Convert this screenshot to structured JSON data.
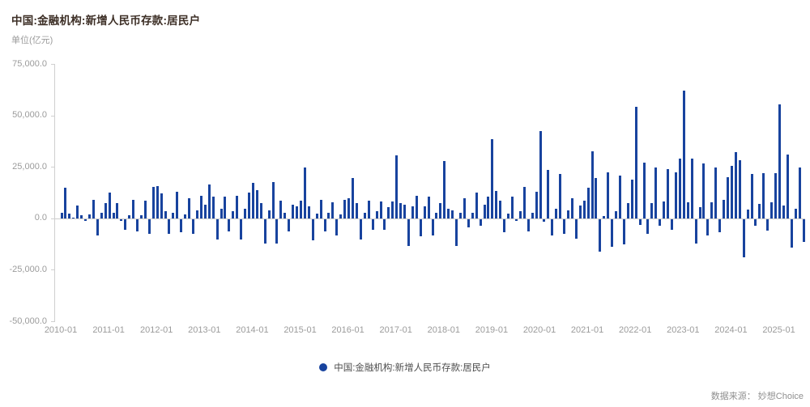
{
  "header": {
    "title": "中国:金融机构:新增人民币存款:居民户",
    "unit_label": "单位(亿元)"
  },
  "legend": {
    "label": "中国:金融机构:新增人民币存款:居民户",
    "dot_color": "#18439E"
  },
  "footer": {
    "source_note": "数据来源： 妙想Choice"
  },
  "colors": {
    "bar": "#18439E",
    "axis": "#cfcfcf",
    "tick_text": "#9b9b9b"
  },
  "chart_data": {
    "type": "bar",
    "title": "中国:金融机构:新增人民币存款:居民户",
    "ylabel": "单位(亿元)",
    "ylim": [
      -50000,
      75000
    ],
    "grid": false,
    "legend_position": "bottom-center",
    "start_month": "2010-01",
    "frequency": "monthly",
    "y_tick_labels": [
      "75,000.0",
      "50,000.0",
      "25,000.0",
      "0.0",
      "-25,000.0",
      "-50,000.0"
    ],
    "y_tick_values": [
      75000,
      50000,
      25000,
      0,
      -25000,
      -50000
    ],
    "x_tick_labels": [
      "2010-01",
      "2011-01",
      "2012-01",
      "2013-01",
      "2014-01",
      "2015-01",
      "2016-01",
      "2017-01",
      "2018-01",
      "2019-01",
      "2020-01",
      "2021-01",
      "2022-01",
      "2023-01",
      "2024-01",
      "2025-01"
    ],
    "values": [
      2600,
      15000,
      2300,
      500,
      6200,
      1300,
      -1000,
      2000,
      9100,
      -7800,
      2600,
      7500,
      12400,
      2600,
      7200,
      -700,
      -5200,
      1500,
      9100,
      -5900,
      1500,
      8500,
      -7200,
      15300,
      15600,
      12200,
      3300,
      -7200,
      2600,
      13000,
      -6500,
      2000,
      9800,
      -7200,
      3900,
      11000,
      6500,
      16500,
      10400,
      -9800,
      4500,
      10400,
      -5900,
      3300,
      11000,
      -9800,
      4600,
      12400,
      17200,
      13500,
      7200,
      -11800,
      3900,
      17600,
      -11800,
      8500,
      2600,
      -5900,
      6500,
      5900,
      8500,
      24700,
      5900,
      -10400,
      2300,
      9100,
      -5900,
      2600,
      7800,
      -7800,
      2000,
      9100,
      9800,
      19500,
      7200,
      -9800,
      2600,
      8500,
      -5100,
      3500,
      8000,
      -5000,
      5500,
      8000,
      30600,
      7200,
      6500,
      -13000,
      5900,
      11000,
      -8500,
      5900,
      10400,
      -8000,
      2700,
      7200,
      28000,
      4600,
      4000,
      -13200,
      2500,
      9800,
      -3900,
      2600,
      12400,
      -3300,
      6500,
      10400,
      38400,
      13200,
      8700,
      -6200,
      2400,
      10400,
      -1000,
      3500,
      15400,
      -6000,
      2500,
      13000,
      42300,
      -1200,
      23500,
      -8000,
      4800,
      21700,
      -7200,
      4000,
      9600,
      -9600,
      6300,
      8600,
      14800,
      32600,
      19400,
      -15700,
      1100,
      22300,
      -13600,
      3300,
      20700,
      -12100,
      7300,
      18700,
      54100,
      -2900,
      27000,
      -7000,
      7400,
      24700,
      -3400,
      8300,
      23800,
      -5100,
      22500,
      28900,
      62000,
      7900,
      29100,
      -12000,
      5400,
      26700,
      -8100,
      7900,
      24600,
      -6400,
      9100,
      19800,
      25300,
      32000,
      28300,
      -18500,
      4200,
      21400,
      -3300,
      7100,
      22000,
      -5700,
      7900,
      21900,
      55200,
      6100,
      30900,
      -13900,
      4700,
      24700,
      -11100
    ]
  }
}
